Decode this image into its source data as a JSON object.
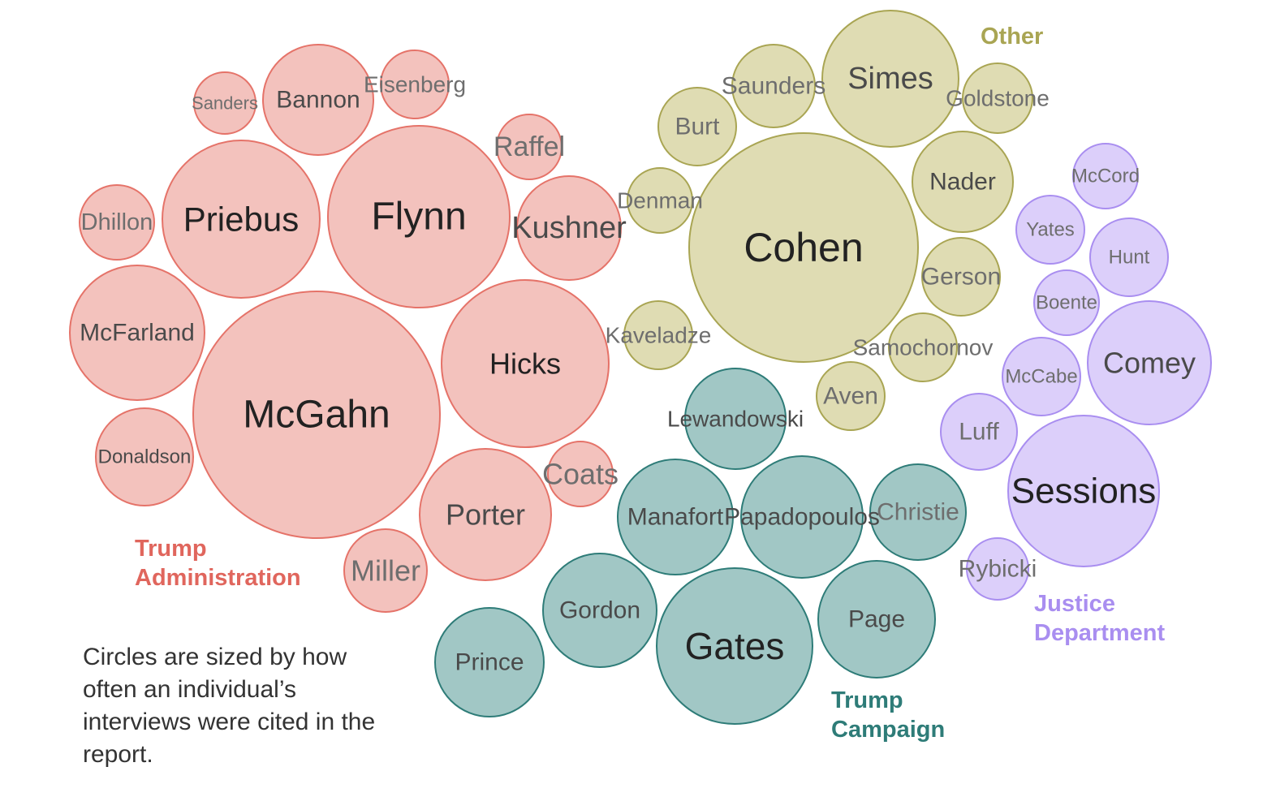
{
  "chart_data": {
    "type": "bubble",
    "title": "",
    "note": "Circles are sized by how often an individual’s interviews were cited in the report.",
    "groups": [
      {
        "name": "Trump Administration",
        "label_lines": [
          "Trump",
          "Administration"
        ],
        "fill": "#f3c2bd",
        "stroke": "#e57369",
        "text_color": "#e0665d",
        "items": [
          "Sanders",
          "Bannon",
          "Eisenberg",
          "Raffel",
          "Dhillon",
          "Priebus",
          "Flynn",
          "Kushner",
          "McFarland",
          "Hicks",
          "McGahn",
          "Donaldson",
          "Coats",
          "Porter",
          "Miller"
        ]
      },
      {
        "name": "Other",
        "label_lines": [
          "Other"
        ],
        "fill": "#dfdcb3",
        "stroke": "#a9a553",
        "text_color": "#a9a553",
        "items": [
          "Saunders",
          "Simes",
          "Goldstone",
          "Burt",
          "Nader",
          "Denman",
          "Cohen",
          "Gerson",
          "Kaveladze",
          "Samochornov",
          "Aven"
        ]
      },
      {
        "name": "Justice Department",
        "label_lines": [
          "Justice",
          "Department"
        ],
        "fill": "#dccffa",
        "stroke": "#a98ef0",
        "text_color": "#a98ef0",
        "items": [
          "McCord",
          "Yates",
          "Hunt",
          "Boente",
          "Comey",
          "McCabe",
          "Luff",
          "Sessions",
          "Rybicki"
        ]
      },
      {
        "name": "Trump Campaign",
        "label_lines": [
          "Trump",
          "Campaign"
        ],
        "fill": "#a1c7c5",
        "stroke": "#2e7c78",
        "text_color": "#2e7c78",
        "items": [
          "Lewandowski",
          "Manafort",
          "Papadopoulos",
          "Christie",
          "Gordon",
          "Gates",
          "Page",
          "Prince"
        ]
      }
    ]
  }
}
